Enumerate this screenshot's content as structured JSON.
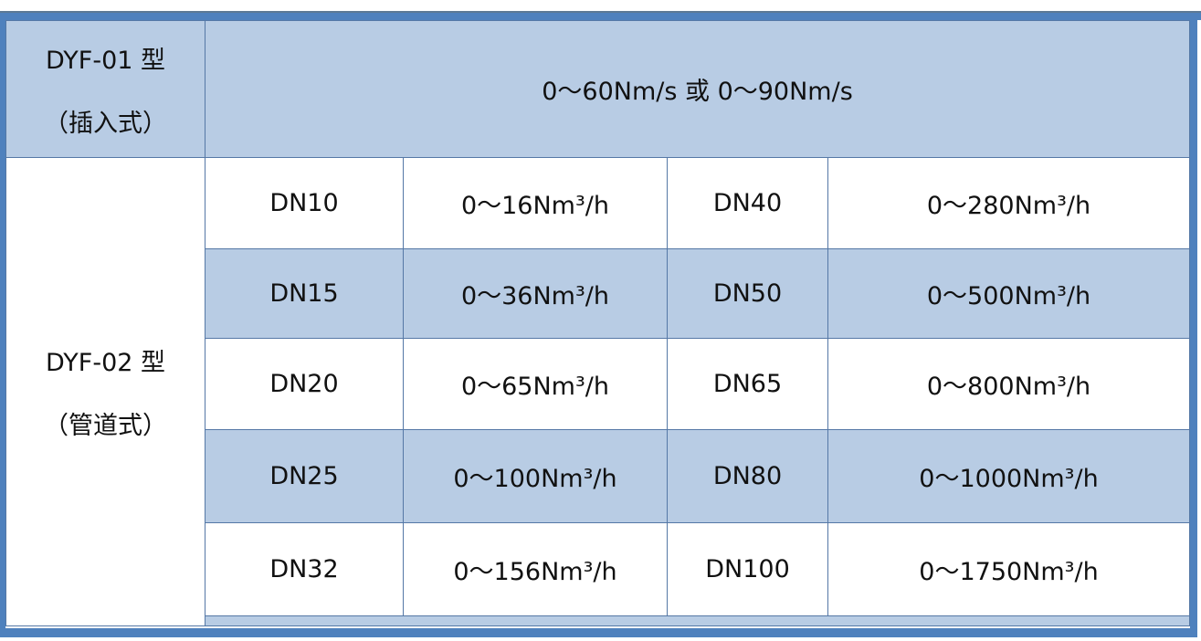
{
  "colors": {
    "band": "#4f81bd",
    "shade": "#b8cce4",
    "border": "#5578a6"
  },
  "insert": {
    "model": "DYF-01 型",
    "type": "（插入式）",
    "range": "0～60Nm/s 或 0～90Nm/s"
  },
  "pipe": {
    "model": "DYF-02 型",
    "type": "（管道式）"
  },
  "rows": [
    {
      "dn1": "DN10",
      "r1": "0～16Nm³/h",
      "dn2": "DN40",
      "r2": "0～280Nm³/h"
    },
    {
      "dn1": "DN15",
      "r1": "0～36Nm³/h",
      "dn2": "DN50",
      "r2": "0～500Nm³/h"
    },
    {
      "dn1": "DN20",
      "r1": "0～65Nm³/h",
      "dn2": "DN65",
      "r2": "0～800Nm³/h"
    },
    {
      "dn1": "DN25",
      "r1": "0～100Nm³/h",
      "dn2": "DN80",
      "r2": "0～1000Nm³/h"
    },
    {
      "dn1": "DN32",
      "r1": "0～156Nm³/h",
      "dn2": "DN100",
      "r2": "0～1750Nm³/h"
    }
  ]
}
